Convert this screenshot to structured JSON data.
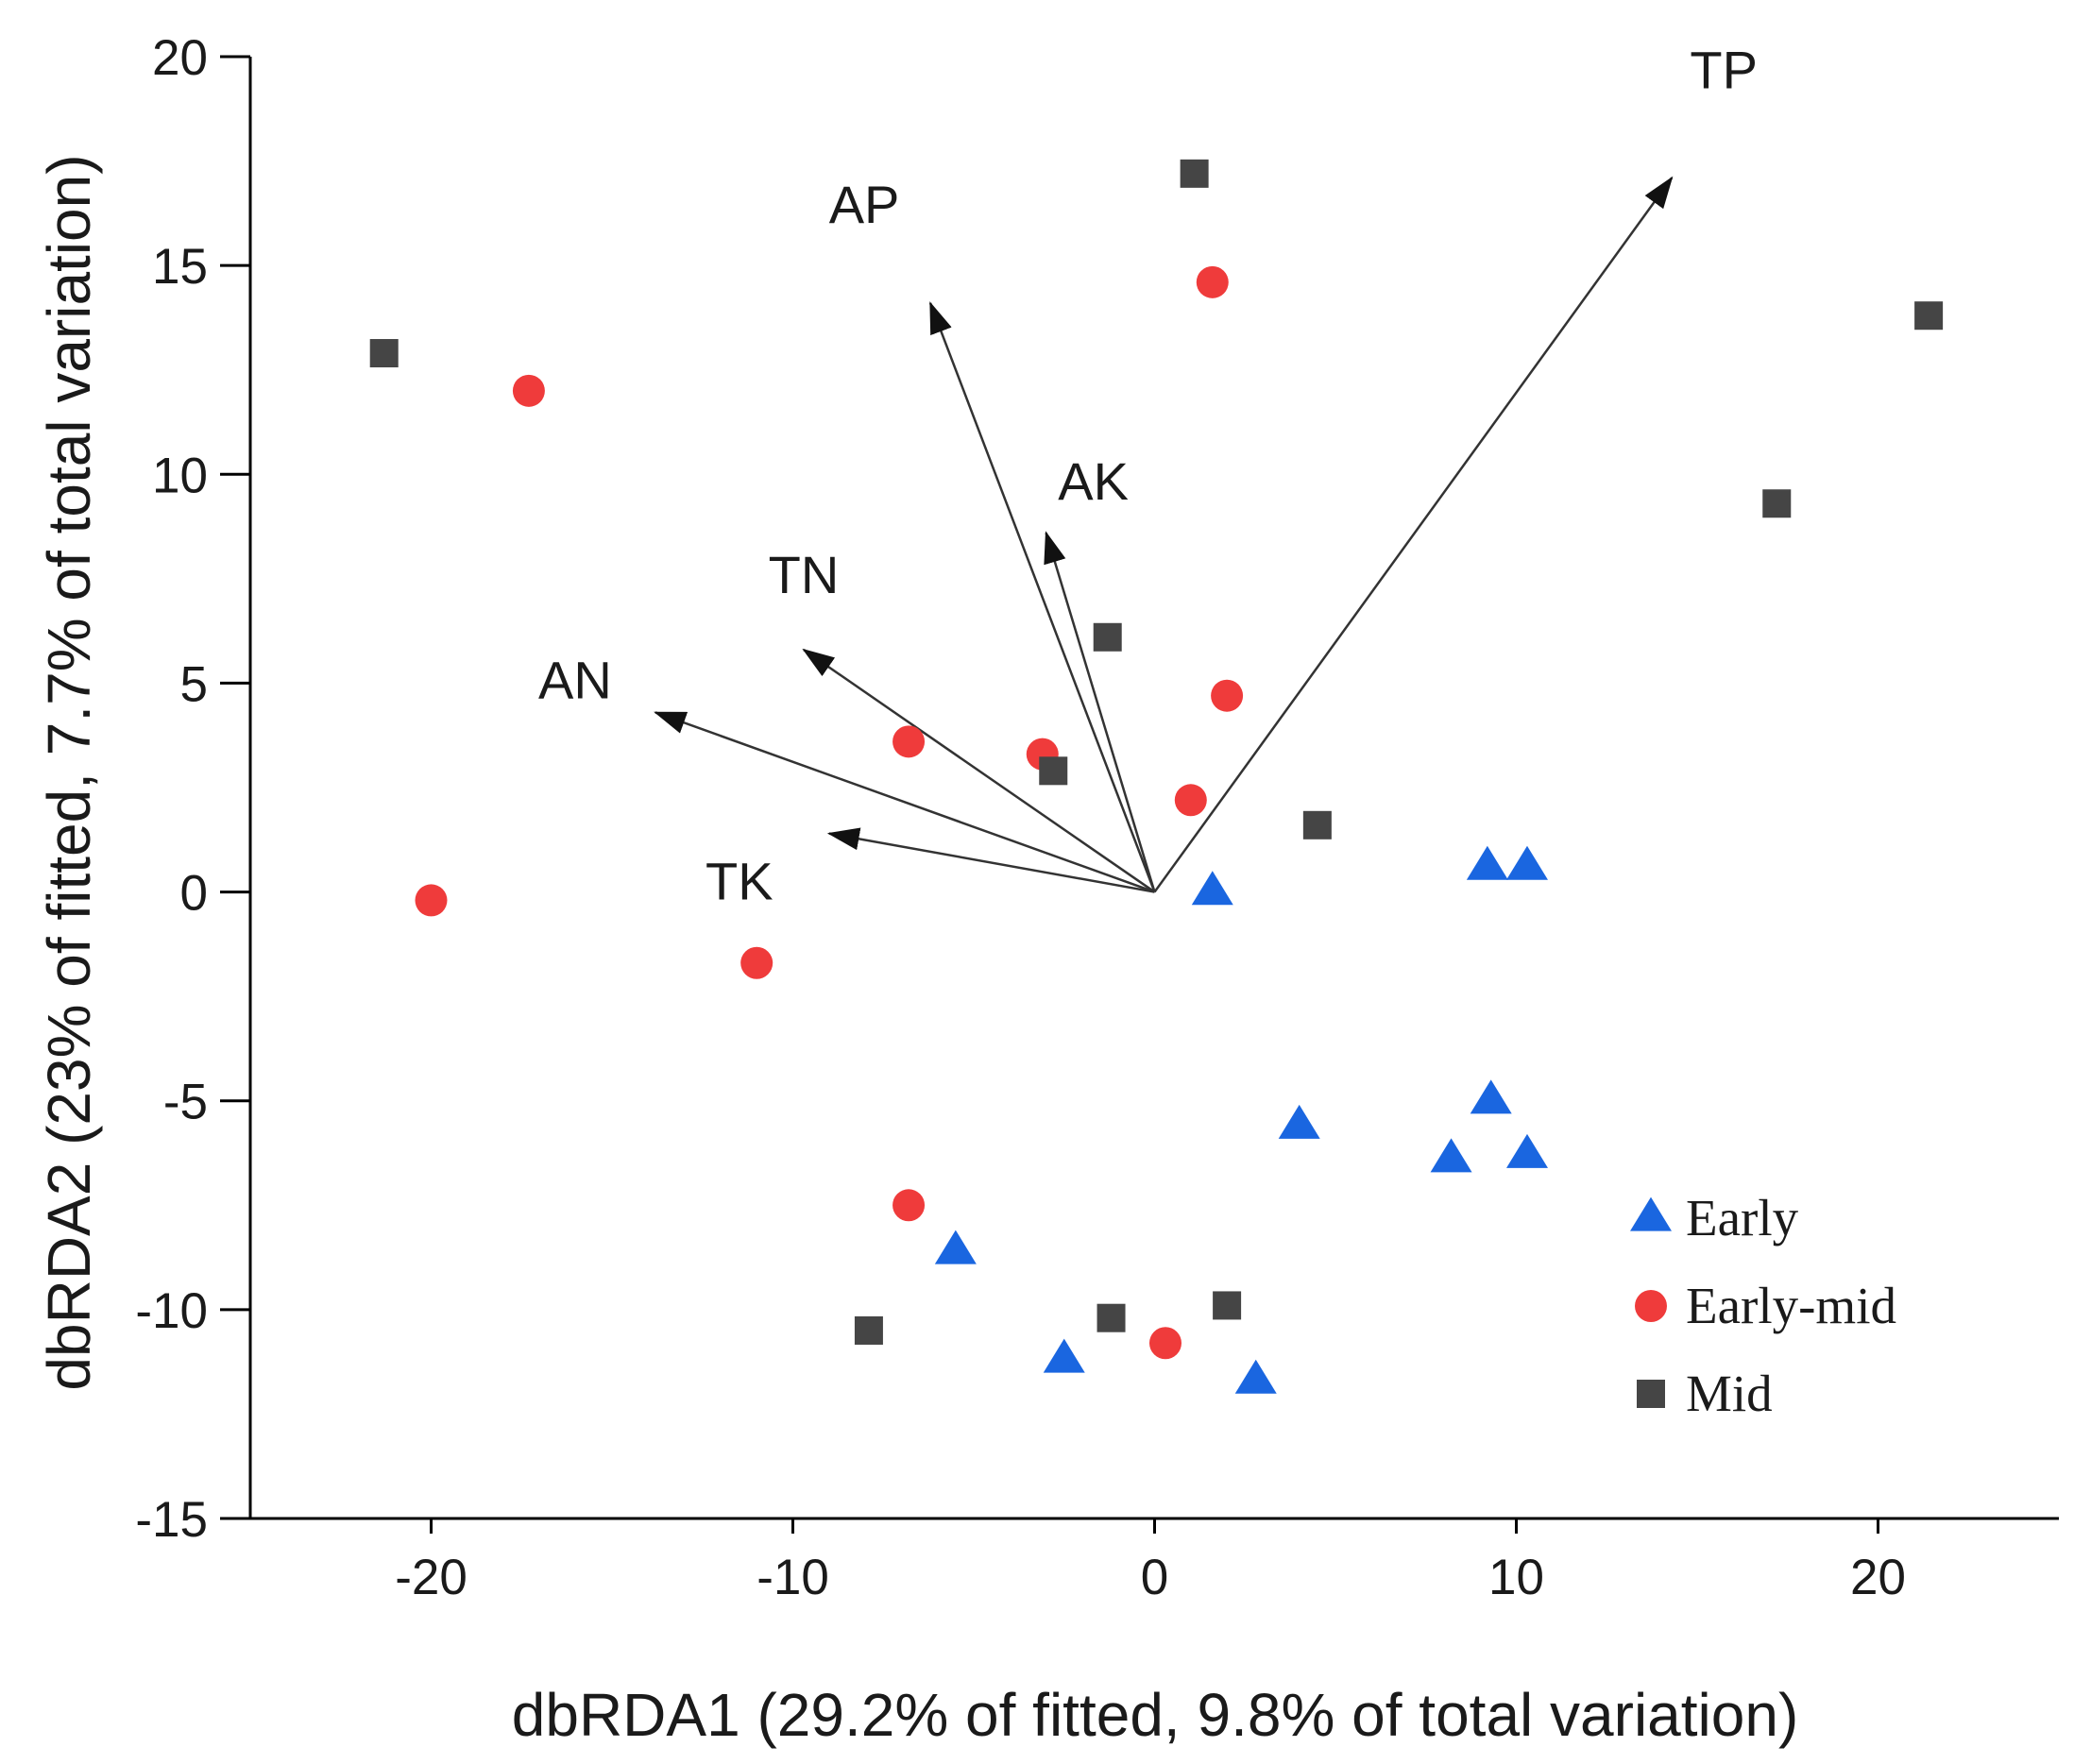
{
  "chart_data": {
    "type": "scatter",
    "title": "",
    "xlabel": "dbRDA1 (29.2% of fitted, 9.8% of total variation)",
    "ylabel": "dbRDA2 (23% of fitted, 7.7% of total variation)",
    "xlim": [
      -25,
      25
    ],
    "ylim": [
      -15,
      20
    ],
    "xticks": [
      -20,
      -10,
      0,
      10,
      20
    ],
    "yticks": [
      -15,
      -10,
      -5,
      0,
      5,
      10,
      15,
      20
    ],
    "xtick_labels": [
      "-20",
      "-10",
      "0",
      "10",
      "20"
    ],
    "ytick_labels": [
      "-15",
      "-10",
      "-5",
      "0",
      "5",
      "10",
      "15",
      "20"
    ],
    "legend_position": "bottom-right",
    "colors": {
      "Early": "#1a66e0",
      "Early-mid": "#ef3b3b",
      "Mid": "#454545"
    },
    "series": [
      {
        "name": "Early",
        "label": "Early",
        "marker": "triangle",
        "points": [
          [
            1.6,
            0.0
          ],
          [
            9.2,
            0.6
          ],
          [
            10.3,
            0.6
          ],
          [
            4.0,
            -5.6
          ],
          [
            9.3,
            -5.0
          ],
          [
            8.2,
            -6.4
          ],
          [
            10.3,
            -6.3
          ],
          [
            -5.5,
            -8.6
          ],
          [
            -2.5,
            -11.2
          ],
          [
            2.8,
            -11.7
          ]
        ]
      },
      {
        "name": "Early-mid",
        "label": "Early-mid",
        "marker": "circle",
        "points": [
          [
            1.6,
            14.6
          ],
          [
            -17.3,
            12.0
          ],
          [
            2.0,
            4.7
          ],
          [
            -6.8,
            3.6
          ],
          [
            -3.1,
            3.3
          ],
          [
            1.0,
            2.2
          ],
          [
            -20.0,
            -0.2
          ],
          [
            -11.0,
            -1.7
          ],
          [
            -6.8,
            -7.5
          ],
          [
            0.3,
            -10.8
          ]
        ]
      },
      {
        "name": "Mid",
        "label": "Mid",
        "marker": "square",
        "points": [
          [
            1.1,
            17.2
          ],
          [
            -21.3,
            12.9
          ],
          [
            21.4,
            13.8
          ],
          [
            17.2,
            9.3
          ],
          [
            -1.3,
            6.1
          ],
          [
            -2.8,
            2.9
          ],
          [
            4.5,
            1.6
          ],
          [
            -7.9,
            -10.5
          ],
          [
            -1.2,
            -10.2
          ],
          [
            2.0,
            -9.9
          ]
        ]
      }
    ],
    "vectors": [
      {
        "name": "TP",
        "x": 14.3,
        "y": 17.1
      },
      {
        "name": "AP",
        "x": -6.2,
        "y": 14.1
      },
      {
        "name": "AK",
        "x": -3.0,
        "y": 8.6
      },
      {
        "name": "TN",
        "x": -9.7,
        "y": 5.8
      },
      {
        "name": "AN",
        "x": -13.8,
        "y": 4.3
      },
      {
        "name": "TK",
        "x": -9.0,
        "y": 1.4
      }
    ]
  }
}
